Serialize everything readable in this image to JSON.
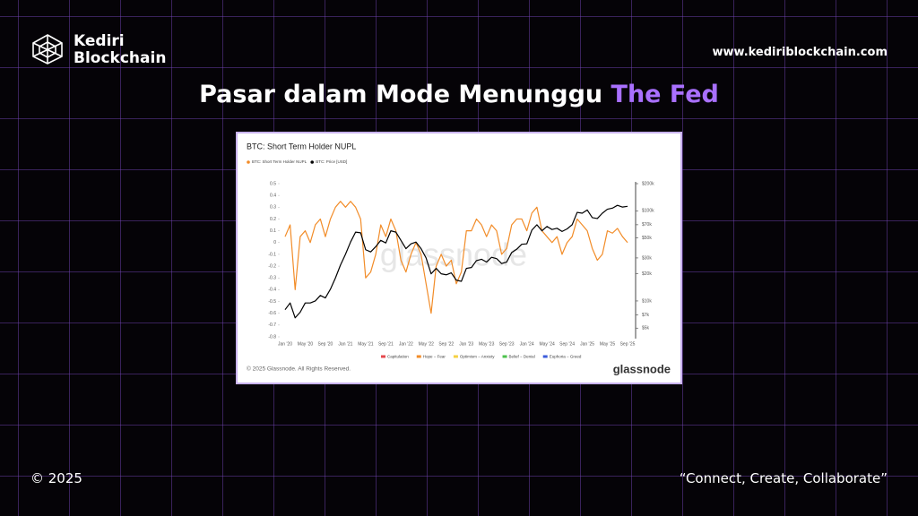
{
  "header": {
    "brand_line1": "Kediri",
    "brand_line2": "Blockchain",
    "website": "www.kediriblockchain.com"
  },
  "headline": {
    "main": "Pasar dalam Mode Menunggu",
    "highlight": "The Fed"
  },
  "footer": {
    "copyright": "© 2025",
    "tagline": "“Connect, Create, Collaborate”"
  },
  "chart_data": {
    "type": "line",
    "title": "BTC: Short Term Holder NUPL",
    "watermark": "glassnode",
    "credit": "© 2025 Glassnode. All Rights Reserved.",
    "logo": "glassnode",
    "x": [
      "Jan '20",
      null,
      null,
      null,
      "May '20",
      null,
      null,
      null,
      "Sep '20",
      null,
      null,
      null,
      "Jan '21",
      null,
      null,
      null,
      "May '21",
      null,
      null,
      null,
      "Sep '21",
      null,
      null,
      null,
      "Jan '22",
      null,
      null,
      null,
      "May '22",
      null,
      null,
      null,
      "Sep '22",
      null,
      null,
      null,
      "Jan '23",
      null,
      null,
      null,
      "May '23",
      null,
      null,
      null,
      "Sep '23",
      null,
      null,
      null,
      "Jan '24",
      null,
      null,
      null,
      "May '24",
      null,
      null,
      null,
      "Sep '24",
      null,
      null,
      null,
      "Jan '25",
      null,
      null,
      null,
      "May '25",
      null,
      null,
      null,
      "Sep '25"
    ],
    "series": [
      {
        "name": "BTC: Short Term Holder NUPL",
        "color": "#f28c28",
        "values": [
          0.05,
          0.15,
          -0.4,
          0.05,
          0.1,
          0.0,
          0.15,
          0.2,
          0.05,
          0.2,
          0.3,
          0.35,
          0.3,
          0.35,
          0.3,
          0.2,
          -0.3,
          -0.25,
          -0.1,
          0.15,
          0.05,
          0.2,
          0.1,
          -0.15,
          -0.25,
          -0.1,
          0.0,
          -0.1,
          -0.35,
          -0.6,
          -0.2,
          -0.1,
          -0.2,
          -0.15,
          -0.35,
          -0.25,
          0.1,
          0.1,
          0.2,
          0.15,
          0.05,
          0.15,
          0.1,
          -0.1,
          -0.05,
          0.15,
          0.2,
          0.2,
          0.1,
          0.25,
          0.3,
          0.1,
          0.05,
          0.0,
          0.05,
          -0.1,
          0.0,
          0.05,
          0.2,
          0.15,
          0.1,
          -0.05,
          -0.15,
          -0.1,
          0.1,
          0.08,
          0.12,
          0.05,
          0.0
        ]
      },
      {
        "name": "BTC: Price [USD]",
        "color": "#000000",
        "axis": "y2",
        "values": [
          8000,
          9500,
          6500,
          7500,
          9500,
          9500,
          10000,
          11500,
          10800,
          13500,
          18000,
          25000,
          33000,
          45000,
          58000,
          57000,
          37000,
          35000,
          40000,
          47000,
          44000,
          60000,
          58000,
          47000,
          38000,
          43000,
          45000,
          38000,
          30000,
          20000,
          23000,
          20000,
          19500,
          20500,
          17000,
          16500,
          23000,
          23500,
          28000,
          29000,
          27000,
          30500,
          29500,
          26000,
          27000,
          34500,
          37500,
          42500,
          43000,
          61000,
          70000,
          60000,
          67000,
          62000,
          64000,
          59000,
          63000,
          70000,
          96000,
          94000,
          102000,
          84000,
          82000,
          94000,
          104000,
          107000,
          115000,
          110000,
          112000
        ]
      }
    ],
    "ylim": [
      -0.8,
      0.5
    ],
    "yticks": [
      0.5,
      0.4,
      0.3,
      0.2,
      0.1,
      0,
      -0.1,
      -0.2,
      -0.3,
      -0.4,
      -0.5,
      -0.6,
      -0.7,
      -0.8
    ],
    "y2lim": [
      4000,
      200000
    ],
    "y2_log": true,
    "y2ticks": [
      {
        "value": 200000,
        "label": "$200k"
      },
      {
        "value": 100000,
        "label": "$100k"
      },
      {
        "value": 70000,
        "label": "$70k"
      },
      {
        "value": 50000,
        "label": "$50k"
      },
      {
        "value": 30000,
        "label": "$30k"
      },
      {
        "value": 20000,
        "label": "$20k"
      },
      {
        "value": 10000,
        "label": "$10k"
      },
      {
        "value": 7000,
        "label": "$7k"
      },
      {
        "value": 5000,
        "label": "$5k"
      }
    ],
    "zones": [
      {
        "name": "Capitulation",
        "color": "#e5484d"
      },
      {
        "name": "Hope − Fear",
        "color": "#f28c28"
      },
      {
        "name": "Optimism − Anxiety",
        "color": "#f5d142"
      },
      {
        "name": "Belief − Denial",
        "color": "#4cc24c"
      },
      {
        "name": "Euphoria − Greed",
        "color": "#3b5bdb"
      }
    ]
  }
}
